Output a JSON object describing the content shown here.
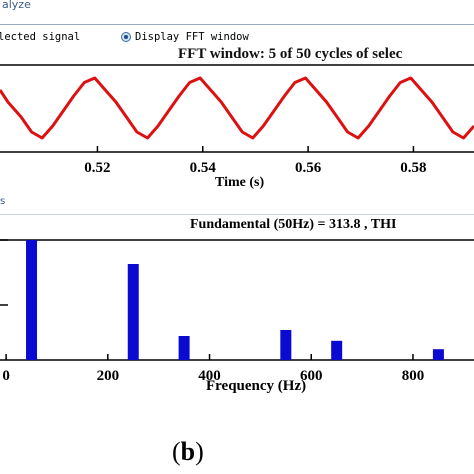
{
  "window": {
    "group_label": "alyze",
    "radio_selected_signal": "lected signal",
    "radio_display_fft": "Display FFT window",
    "secondary_label": "s"
  },
  "top_plot": {
    "title": "FFT window: 5 of 50 cycles of selec",
    "xlabel": "Time (s)",
    "line_color": "#dd1111"
  },
  "bottom_plot": {
    "title": "Fundamental (50Hz) = 313.8 , THI",
    "xlabel": "Frequency (Hz)",
    "bar_color": "#0a0ad0"
  },
  "caption": {
    "open": "(",
    "letter": "b",
    "close": ")"
  },
  "chart_data": [
    {
      "type": "line",
      "title": "FFT window: 5 of 50 cycles of selec",
      "xlabel": "Time (s)",
      "ylabel": "",
      "x_ticks": [
        "0.52",
        "0.54",
        "0.56",
        "0.58"
      ],
      "xlim": [
        0.5015,
        0.5915
      ],
      "ylim": [
        -1.2,
        1.2
      ],
      "series": [
        {
          "period_s": 0.02,
          "x": [
            0.5015,
            0.503,
            0.5055,
            0.5075,
            0.5095,
            0.5115,
            0.5135,
            0.5155,
            0.5175,
            0.5195,
            0.5215,
            0.5235,
            0.5255,
            0.5275,
            0.5295,
            0.5315,
            0.5335,
            0.5355,
            0.5375,
            0.5395,
            0.5415,
            0.5435,
            0.5455,
            0.5475,
            0.5495,
            0.5515,
            0.5535,
            0.5555,
            0.5575,
            0.5595,
            0.5615,
            0.5635,
            0.5655,
            0.5675,
            0.5695,
            0.5715,
            0.5735,
            0.5755,
            0.5775,
            0.5795,
            0.5815,
            0.5835,
            0.5855,
            0.5875,
            0.5895,
            0.5915
          ],
          "y": [
            0.6,
            0.2,
            -0.3,
            -0.8,
            -1.0,
            -0.6,
            -0.1,
            0.4,
            0.85,
            1.0,
            0.6,
            0.2,
            -0.3,
            -0.8,
            -1.0,
            -0.6,
            -0.1,
            0.4,
            0.85,
            1.0,
            0.6,
            0.2,
            -0.3,
            -0.8,
            -1.0,
            -0.6,
            -0.1,
            0.4,
            0.85,
            1.0,
            0.6,
            0.2,
            -0.3,
            -0.8,
            -1.0,
            -0.6,
            -0.1,
            0.4,
            0.85,
            1.0,
            0.6,
            0.2,
            -0.3,
            -0.8,
            -1.0,
            -0.6
          ]
        }
      ]
    },
    {
      "type": "bar",
      "title": "Fundamental (50Hz) = 313.8 , THI",
      "xlabel": "Frequency (Hz)",
      "ylabel": "",
      "x_ticks": [
        "0",
        "200",
        "400",
        "600",
        "800"
      ],
      "xlim": [
        -12,
        920
      ],
      "ylim": [
        0,
        100
      ],
      "x": [
        50,
        250,
        350,
        550,
        650,
        850
      ],
      "values": [
        100,
        80,
        20,
        25,
        16,
        9
      ]
    }
  ]
}
